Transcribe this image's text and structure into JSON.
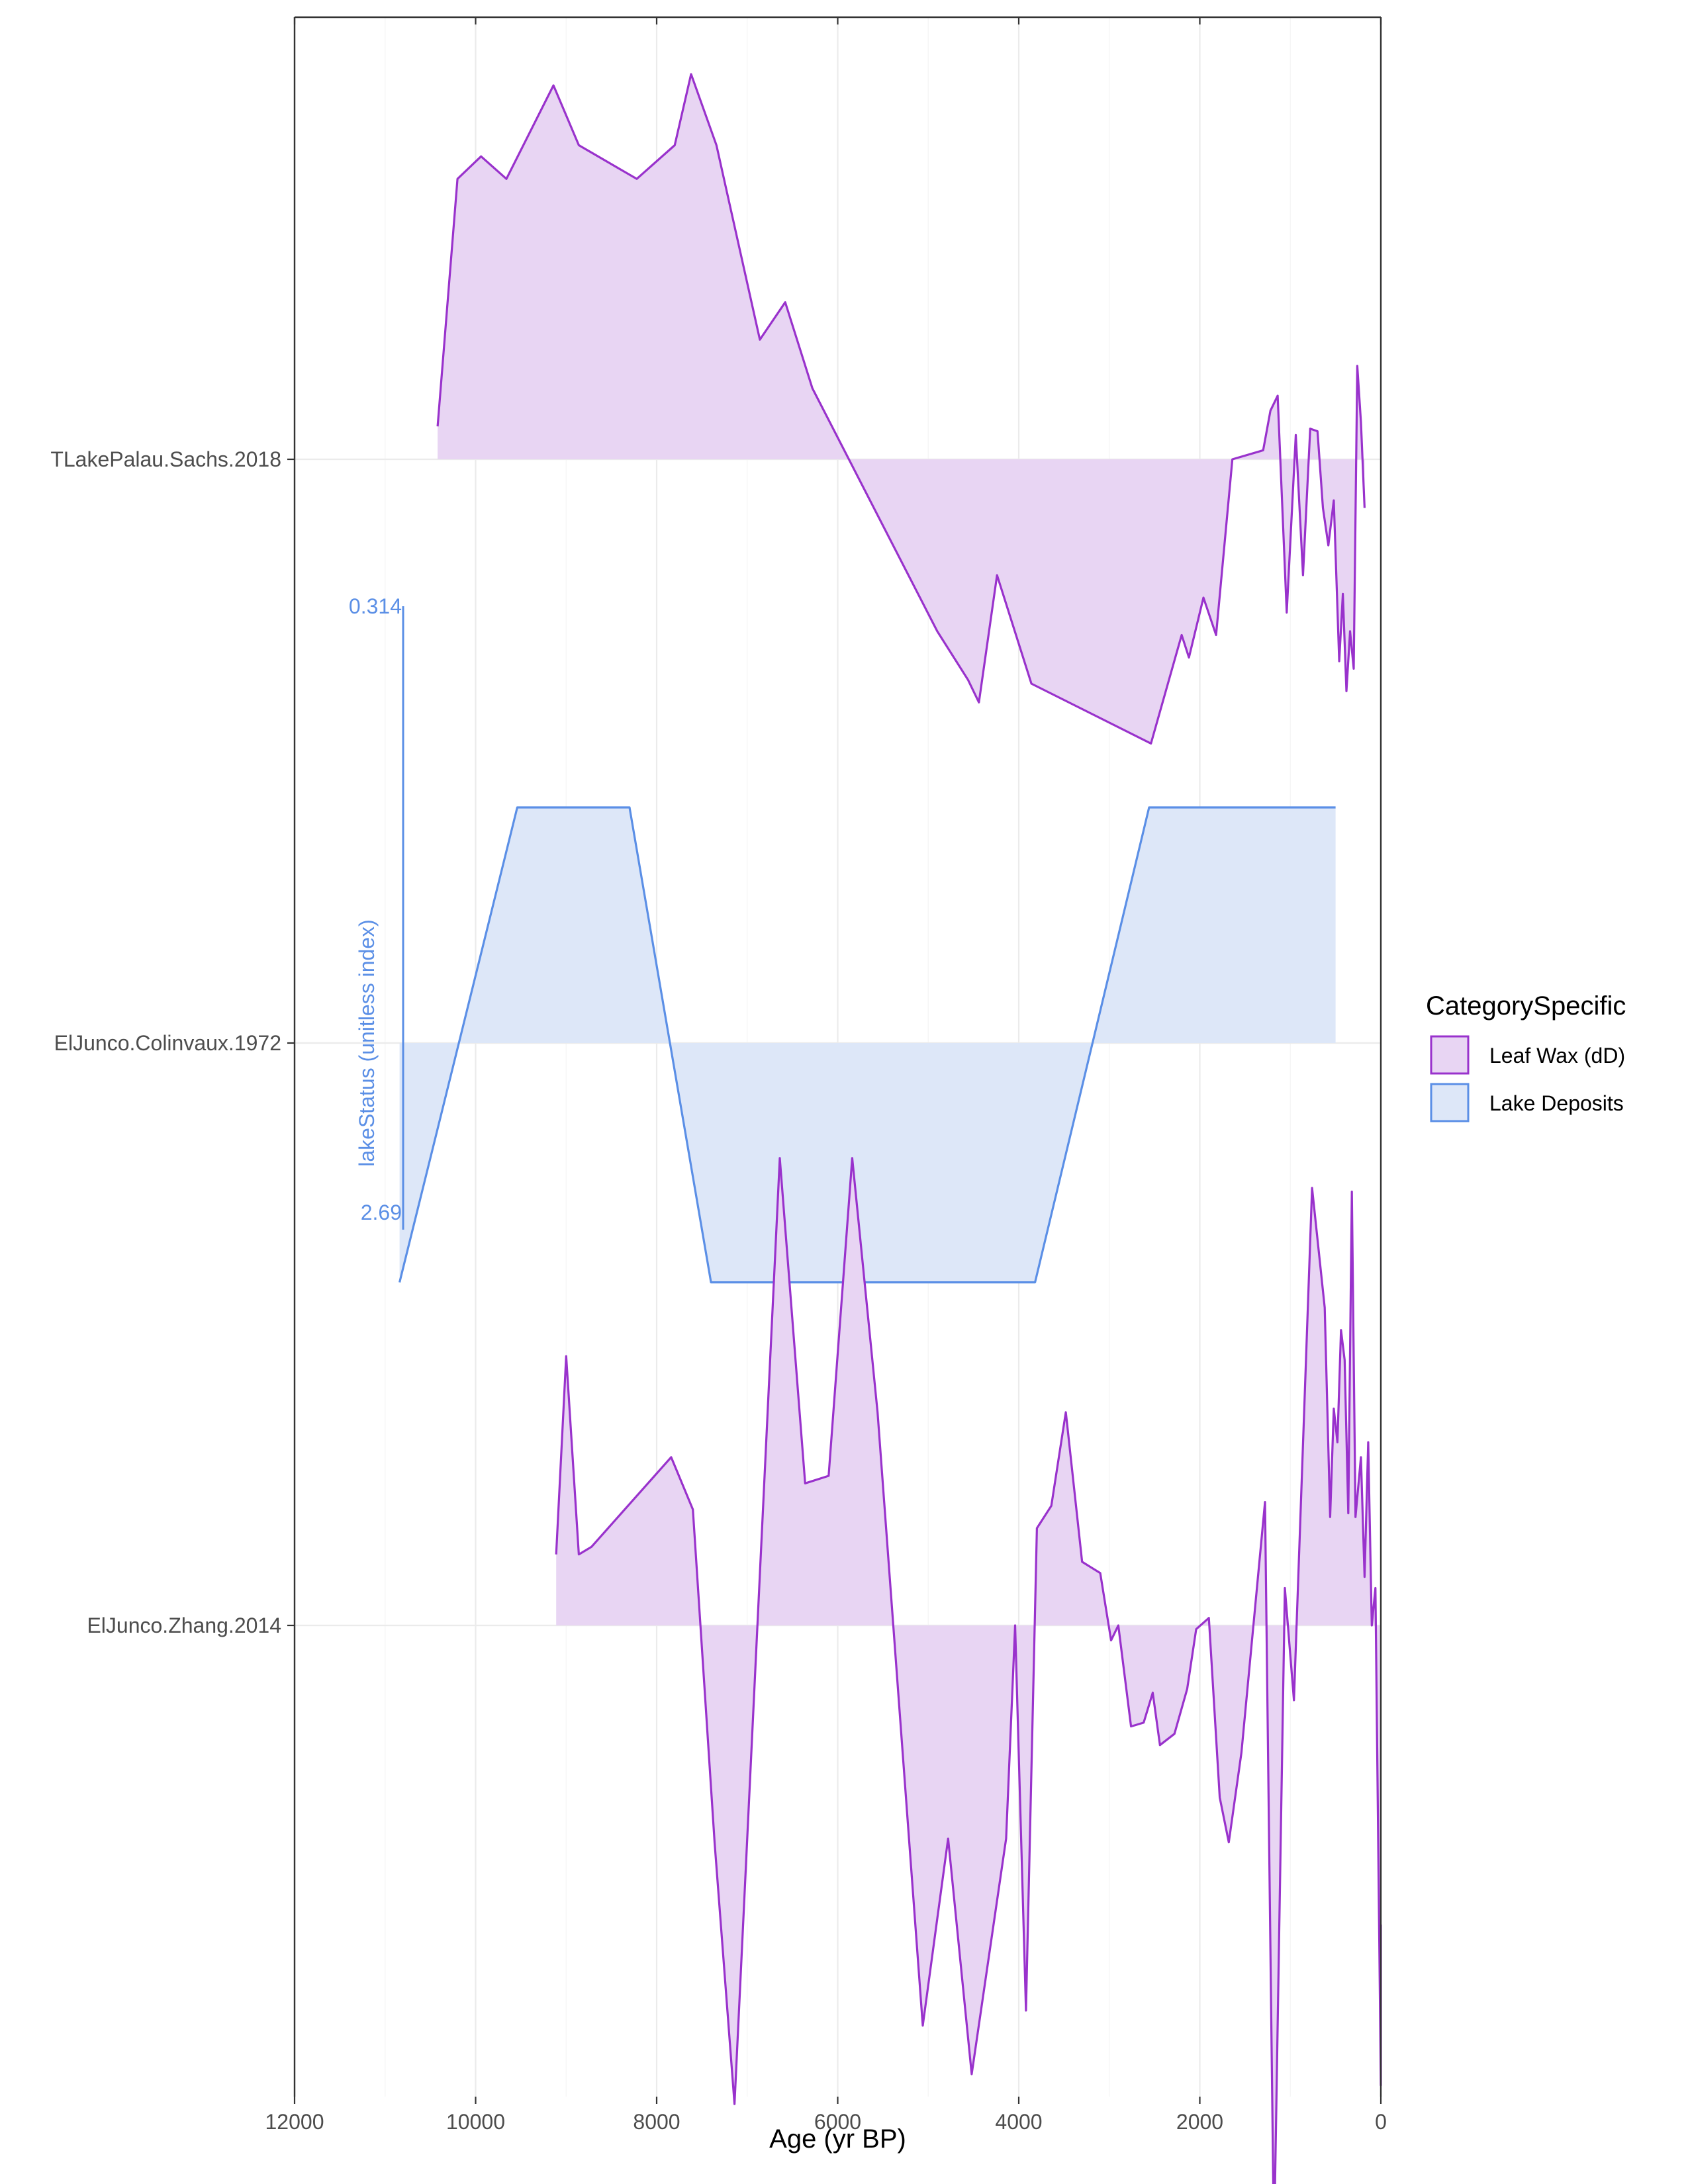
{
  "chart_data": {
    "type": "area",
    "xlabel": "Age (yr BP)",
    "x_reversed": true,
    "xlim": [
      12000,
      0
    ],
    "x_ticks": [
      12000,
      10000,
      8000,
      6000,
      4000,
      2000,
      0
    ],
    "x_tick_labels": [
      "12000",
      "10000",
      "8000",
      "6000",
      "4000",
      "2000",
      "0"
    ],
    "grid": true,
    "legend": {
      "title": "CategorySpecific",
      "position": "right",
      "entries": [
        {
          "label": "Leaf Wax (dD)",
          "line_color": "#9932CC",
          "fill_color": "#E8D5F3"
        },
        {
          "label": "Lake Deposits",
          "line_color": "#5B8FE6",
          "fill_color": "#DDE7F8"
        }
      ]
    },
    "tracks": [
      {
        "label": "TLakePalau.Sachs.2018",
        "category": "Leaf Wax (dD)",
        "baseline_value": 0,
        "y_range": [
          -1,
          1
        ],
        "points": [
          [
            10420,
            0.088
          ],
          [
            10200,
            0.75
          ],
          [
            9940,
            0.81
          ],
          [
            9660,
            0.75
          ],
          [
            9140,
            1.0
          ],
          [
            8860,
            0.84
          ],
          [
            8220,
            0.75
          ],
          [
            7800,
            0.84
          ],
          [
            7620,
            1.03
          ],
          [
            7340,
            0.84
          ],
          [
            6860,
            0.32
          ],
          [
            6580,
            0.42
          ],
          [
            6280,
            0.19
          ],
          [
            4900,
            -0.46
          ],
          [
            4560,
            -0.59
          ],
          [
            4440,
            -0.65
          ],
          [
            4240,
            -0.31
          ],
          [
            3860,
            -0.6
          ],
          [
            2540,
            -0.76
          ],
          [
            2200,
            -0.47
          ],
          [
            2120,
            -0.53
          ],
          [
            1960,
            -0.37
          ],
          [
            1820,
            -0.47
          ],
          [
            1640,
            0.0
          ],
          [
            1300,
            0.024
          ],
          [
            1220,
            0.13
          ],
          [
            1140,
            0.17
          ],
          [
            1040,
            -0.41
          ],
          [
            940,
            0.065
          ],
          [
            860,
            -0.31
          ],
          [
            780,
            0.082
          ],
          [
            700,
            0.075
          ],
          [
            640,
            -0.13
          ],
          [
            580,
            -0.23
          ],
          [
            520,
            -0.11
          ],
          [
            460,
            -0.54
          ],
          [
            420,
            -0.36
          ],
          [
            380,
            -0.62
          ],
          [
            340,
            -0.46
          ],
          [
            300,
            -0.56
          ],
          [
            260,
            0.25
          ],
          [
            220,
            0.1
          ],
          [
            180,
            -0.13
          ]
        ]
      },
      {
        "label": "ElJunco.Colinvaux.1972",
        "category": "Lake Deposits",
        "baseline_value": 0,
        "y_range": [
          -1,
          1
        ],
        "scale_bar": {
          "title": "lakeStatus (unitless index)",
          "top_label": "0.314",
          "bottom_label": "2.69"
        },
        "points": [
          [
            10840,
            -0.64
          ],
          [
            9540,
            0.63
          ],
          [
            8300,
            0.63
          ],
          [
            7400,
            -0.64
          ],
          [
            3820,
            -0.64
          ],
          [
            2560,
            0.63
          ],
          [
            500,
            0.63
          ]
        ]
      },
      {
        "label": "ElJunco.Zhang.2014",
        "category": "Leaf Wax (dD)",
        "baseline_value": 0,
        "y_range": [
          -1,
          1
        ],
        "points": [
          [
            9110,
            0.19
          ],
          [
            9000,
            0.72
          ],
          [
            8860,
            0.19
          ],
          [
            8720,
            0.21
          ],
          [
            7840,
            0.45
          ],
          [
            7600,
            0.31
          ],
          [
            7360,
            -0.58
          ],
          [
            7140,
            -1.28
          ],
          [
            6640,
            1.25
          ],
          [
            6360,
            0.38
          ],
          [
            6100,
            0.4
          ],
          [
            5840,
            1.25
          ],
          [
            5560,
            0.57
          ],
          [
            5060,
            -1.07
          ],
          [
            4780,
            -0.57
          ],
          [
            4520,
            -1.2
          ],
          [
            4140,
            -0.57
          ],
          [
            4040,
            0.0
          ],
          [
            3920,
            -1.03
          ],
          [
            3800,
            0.26
          ],
          [
            3640,
            0.32
          ],
          [
            3480,
            0.57
          ],
          [
            3300,
            0.17
          ],
          [
            3100,
            0.14
          ],
          [
            2980,
            -0.04
          ],
          [
            2900,
            0.0
          ],
          [
            2760,
            -0.27
          ],
          [
            2620,
            -0.26
          ],
          [
            2520,
            -0.18
          ],
          [
            2440,
            -0.32
          ],
          [
            2280,
            -0.29
          ],
          [
            2140,
            -0.17
          ],
          [
            2040,
            -0.01
          ],
          [
            1900,
            0.02
          ],
          [
            1780,
            -0.46
          ],
          [
            1680,
            -0.58
          ],
          [
            1540,
            -0.34
          ],
          [
            1280,
            0.33
          ],
          [
            1180,
            -1.66
          ],
          [
            1060,
            0.1
          ],
          [
            960,
            -0.2
          ],
          [
            760,
            1.17
          ],
          [
            620,
            0.85
          ],
          [
            560,
            0.29
          ],
          [
            520,
            0.58
          ],
          [
            480,
            0.49
          ],
          [
            440,
            0.79
          ],
          [
            400,
            0.71
          ],
          [
            360,
            0.3
          ],
          [
            320,
            1.16
          ],
          [
            280,
            0.29
          ],
          [
            220,
            0.45
          ],
          [
            180,
            0.13
          ],
          [
            140,
            0.49
          ],
          [
            100,
            0.0
          ],
          [
            60,
            0.1
          ],
          [
            0,
            -1.23
          ],
          [
            0,
            -0.8
          ]
        ]
      }
    ]
  }
}
